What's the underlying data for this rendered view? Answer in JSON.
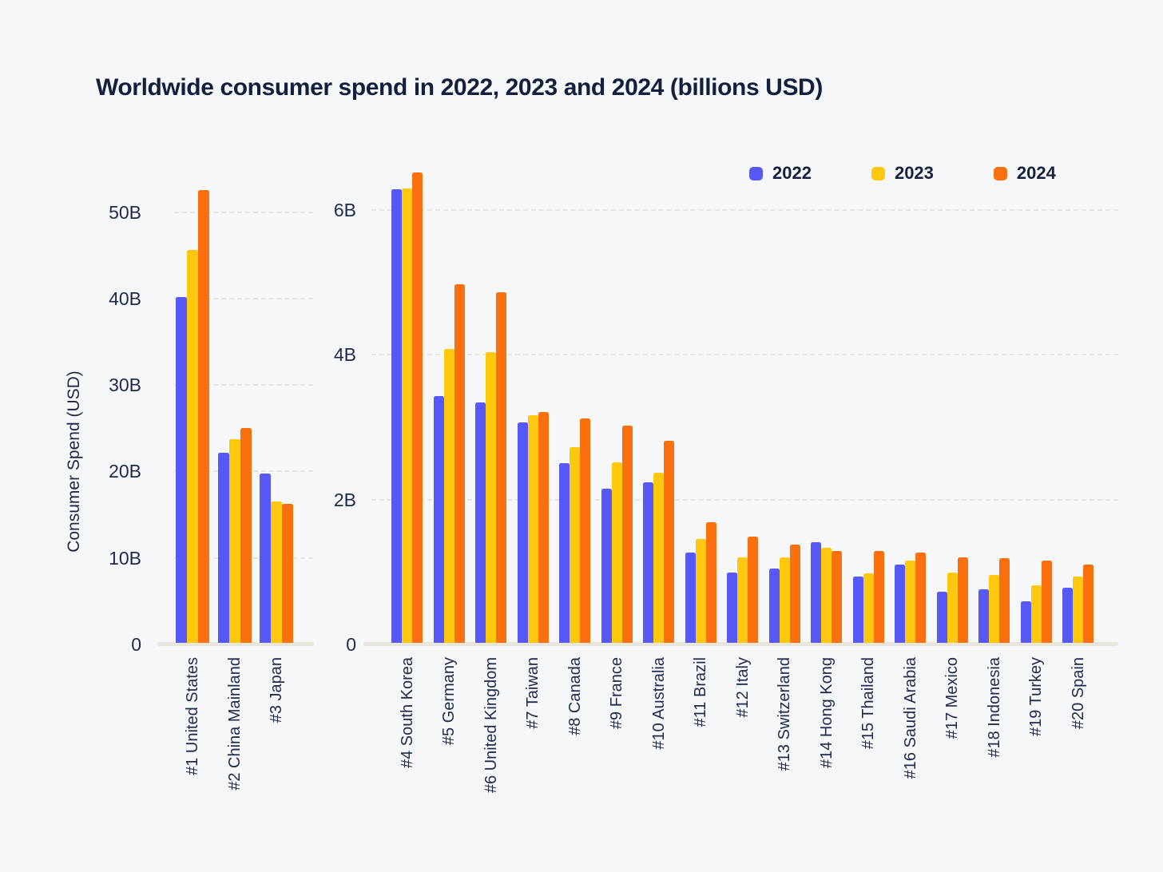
{
  "title": "Worldwide consumer spend in 2022, 2023 and 2024 (billions USD)",
  "y_axis_label": "Consumer Spend (USD)",
  "colors": {
    "background": "#f6f7f9",
    "title_text": "#131f3e",
    "tick_text": "#1d2a4d",
    "gridline": "#e8e5db",
    "baseline": "#e9e6dd",
    "series_2022": "#5659f6",
    "series_2023": "#ffc70e",
    "series_2024": "#fb700e"
  },
  "legend": {
    "items": [
      {
        "label": "2022",
        "color": "#5659f6"
      },
      {
        "label": "2023",
        "color": "#ffc70e"
      },
      {
        "label": "2024",
        "color": "#fb700e"
      }
    ]
  },
  "chart_data": [
    {
      "type": "bar",
      "panel": "left",
      "unit": "billions USD",
      "ylabel": "Consumer Spend (USD)",
      "ylim": [
        0,
        54
      ],
      "grid": true,
      "legend_position": "top-right",
      "yticks": [
        {
          "value": 0,
          "label": "0"
        },
        {
          "value": 10,
          "label": "10B"
        },
        {
          "value": 20,
          "label": "20B"
        },
        {
          "value": 30,
          "label": "30B"
        },
        {
          "value": 40,
          "label": "40B"
        },
        {
          "value": 50,
          "label": "50B"
        }
      ],
      "categories": [
        "#1 United States",
        "#2 China Mainland",
        "#3 Japan"
      ],
      "series": [
        {
          "name": "2022",
          "color": "#5659f6",
          "values": [
            40.0,
            22.0,
            19.6
          ]
        },
        {
          "name": "2023",
          "color": "#ffc70e",
          "values": [
            45.4,
            23.5,
            16.3
          ]
        },
        {
          "name": "2024",
          "color": "#fb700e",
          "values": [
            52.4,
            24.8,
            16.1
          ]
        }
      ]
    },
    {
      "type": "bar",
      "panel": "right",
      "unit": "billions USD",
      "ylim": [
        0,
        6.6
      ],
      "grid": true,
      "yticks": [
        {
          "value": 0,
          "label": "0"
        },
        {
          "value": 2,
          "label": "2B"
        },
        {
          "value": 4,
          "label": "4B"
        },
        {
          "value": 6,
          "label": "6B"
        }
      ],
      "categories": [
        "#4 South Korea",
        "#5 Germany",
        "#6 United Kingdom",
        "#7 Taiwan",
        "#8 Canada",
        "#9 France",
        "#10 Australia",
        "#11 Brazil",
        "#12 Italy",
        "#13 Switzerland",
        "#14 Hong Kong",
        "#15 Thailand",
        "#16 Saudi Arabia",
        "#17 Mexico",
        "#18 Indonesia",
        "#19 Turkey",
        "#20 Spain"
      ],
      "series": [
        {
          "name": "2022",
          "color": "#5659f6",
          "values": [
            6.26,
            3.41,
            3.32,
            3.04,
            2.48,
            2.13,
            2.22,
            1.24,
            0.97,
            1.03,
            1.39,
            0.91,
            1.08,
            0.7,
            0.74,
            0.57,
            0.76
          ]
        },
        {
          "name": "2023",
          "color": "#ffc70e",
          "values": [
            6.27,
            4.06,
            4.01,
            3.14,
            2.7,
            2.49,
            2.35,
            1.43,
            1.18,
            1.18,
            1.31,
            0.96,
            1.14,
            0.97,
            0.94,
            0.79,
            0.91
          ]
        },
        {
          "name": "2024",
          "color": "#fb700e",
          "values": [
            6.49,
            4.95,
            4.84,
            3.18,
            3.1,
            3.0,
            2.79,
            1.66,
            1.47,
            1.36,
            1.27,
            1.27,
            1.25,
            1.18,
            1.17,
            1.13,
            1.08
          ]
        }
      ]
    }
  ]
}
